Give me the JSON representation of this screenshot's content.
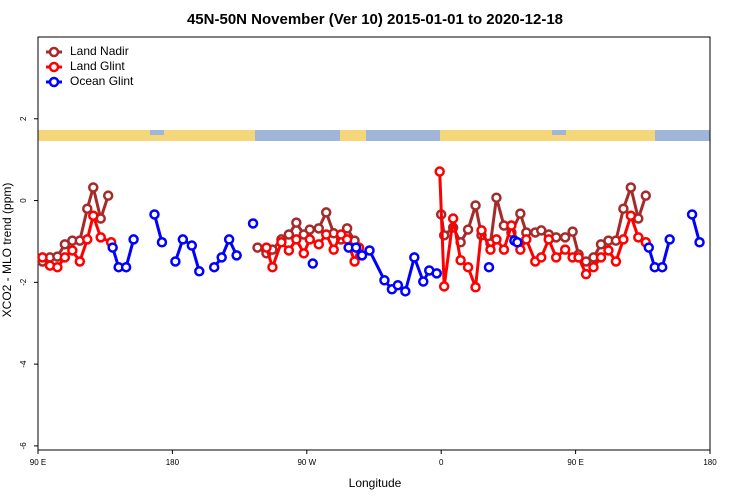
{
  "chart_data": {
    "type": "line",
    "title": "45N-50N November (Ver 10)   2015-01-01 to 2020-12-18",
    "x_label": "Longitude",
    "y_label": "XCO2 - MLO trend (ppm)",
    "xlim": [
      -270,
      180
    ],
    "xticks": [
      {
        "value": -270,
        "label": "90 E"
      },
      {
        "value": -180,
        "label": "180"
      },
      {
        "value": -90,
        "label": "90 W"
      },
      0,
      {
        "value": 90,
        "label": "90 E"
      },
      180
    ],
    "ylim": [
      -6.1,
      4.0
    ],
    "yticks": [
      -6,
      -4,
      -2,
      0,
      2
    ],
    "legend": "top-left",
    "series": [
      {
        "name": "Land Nadir",
        "color": "#a52a2a",
        "x": [
          -267,
          -262,
          -257,
          -252,
          -247,
          -242,
          -237,
          -233,
          -228,
          -223,
          null,
          -123,
          -117,
          -113,
          -107,
          -102,
          -97,
          -92,
          -88,
          -82,
          -77,
          -72,
          -67,
          -63,
          -58,
          null,
          0,
          2,
          8,
          13,
          18,
          23,
          27,
          33,
          37,
          42,
          47,
          53,
          57,
          63,
          67,
          72,
          77,
          83,
          88,
          92,
          97,
          102,
          107,
          112,
          117,
          122,
          127,
          132,
          137
        ],
        "values": [
          -1.49,
          -1.39,
          -1.37,
          -1.07,
          -0.98,
          -0.98,
          -0.2,
          0.32,
          -0.44,
          0.12,
          null,
          -1.15,
          -1.29,
          -1.2,
          -0.95,
          -0.83,
          -0.54,
          -0.83,
          -0.71,
          -0.68,
          -0.29,
          -0.8,
          -0.95,
          -0.68,
          -0.98,
          null,
          -0.34,
          -0.85,
          -0.66,
          -1.02,
          -0.71,
          -0.12,
          -0.85,
          -1.05,
          0.07,
          -0.61,
          -0.78,
          -0.32,
          -0.78,
          -0.78,
          -0.73,
          -0.83,
          -0.9,
          -0.9,
          -0.76,
          -1.32,
          -1.49,
          -1.39,
          -1.07,
          -0.98,
          -0.98,
          -0.2,
          0.32,
          -0.44,
          0.12
        ]
      },
      {
        "name": "Land Glint",
        "color": "#ff0000",
        "x": [
          -267,
          -262,
          -257,
          -252,
          -247,
          -242,
          -237,
          -233,
          -228,
          -221,
          null,
          -117,
          -113,
          -107,
          -102,
          -97,
          -92,
          -88,
          -82,
          -77,
          -72,
          -67,
          -63,
          -58,
          -55,
          null,
          -1,
          2,
          8,
          13,
          18,
          23,
          27,
          33,
          37,
          42,
          47,
          53,
          57,
          63,
          67,
          72,
          77,
          83,
          88,
          92,
          97,
          102,
          107,
          112,
          117,
          122,
          127,
          132,
          137
        ],
        "values": [
          -1.39,
          -1.59,
          -1.63,
          -1.39,
          -1.22,
          -1.49,
          -0.95,
          -0.37,
          -0.9,
          -1.02,
          null,
          -1.15,
          -1.63,
          -1.02,
          -1.22,
          -0.95,
          -1.29,
          -0.95,
          -1.07,
          -0.83,
          -1.2,
          -0.83,
          -0.95,
          -1.49,
          -1.15,
          null,
          0.71,
          -2.1,
          -0.44,
          -1.46,
          -1.63,
          -2.12,
          -0.73,
          -1.2,
          -0.95,
          -1.2,
          -0.61,
          -1.2,
          -0.95,
          -1.49,
          -1.39,
          -0.95,
          -1.39,
          -1.2,
          -1.39,
          -1.39,
          -1.8,
          -1.63,
          -1.39,
          -1.22,
          -1.49,
          -0.95,
          -0.37,
          -0.9,
          -1.02
        ]
      },
      {
        "name": "Ocean Glint",
        "color": "#0000ff",
        "x": [
          -220,
          -216,
          -211,
          -206,
          null,
          -192,
          -187,
          null,
          -178,
          -173,
          -167,
          -162,
          null,
          -152,
          -147,
          -142,
          -137,
          null,
          -126,
          null,
          -86,
          null,
          -62,
          -57,
          -53,
          -48,
          -38,
          -33,
          -29,
          -24,
          -18,
          -12,
          -8,
          -3,
          null,
          32,
          null,
          49,
          51,
          null,
          139,
          143,
          148,
          153,
          null,
          168,
          173
        ],
        "values": [
          -1.15,
          -1.63,
          -1.63,
          -0.95,
          null,
          -0.34,
          -1.02,
          null,
          -1.49,
          -0.95,
          -1.1,
          -1.73,
          null,
          -1.63,
          -1.39,
          -0.95,
          -1.34,
          null,
          -0.56,
          null,
          -1.54,
          null,
          -1.15,
          -1.15,
          -1.34,
          -1.22,
          -1.95,
          -2.17,
          -2.07,
          -2.22,
          -1.39,
          -1.98,
          -1.71,
          -1.78,
          null,
          -1.63,
          null,
          -0.98,
          -1.02,
          null,
          -1.15,
          -1.63,
          -1.63,
          -0.95,
          null,
          -0.34,
          -1.02
        ]
      }
    ]
  }
}
